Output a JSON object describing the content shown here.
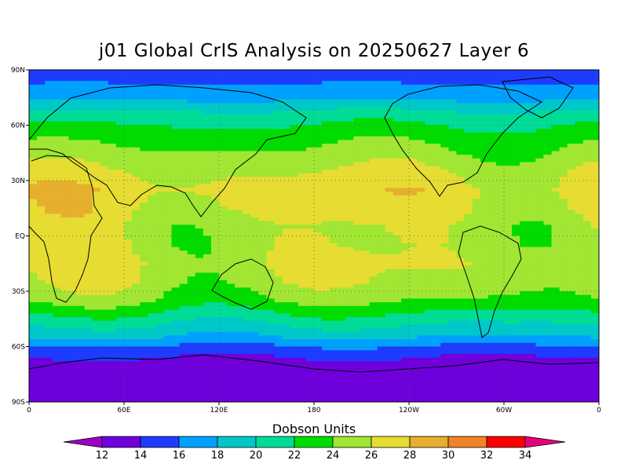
{
  "chart_data": {
    "type": "heatmap",
    "title": "j01 Global CrIS Analysis on 20250627 Layer 6",
    "colorbar_label": "Dobson Units",
    "map_projection": "cylindrical equidistant, 0 to 360 longitude",
    "x_ticks": [
      "0",
      "60E",
      "120E",
      "180",
      "120W",
      "60W",
      "0"
    ],
    "y_ticks": [
      "90N",
      "60N",
      "30N",
      "EQ",
      "30S",
      "60S",
      "90S"
    ],
    "xlim": [
      0,
      360
    ],
    "ylim": [
      -90,
      90
    ],
    "grid": true,
    "legend_position": "bottom",
    "colorbar_ticks": [
      "12",
      "14",
      "16",
      "18",
      "20",
      "22",
      "24",
      "26",
      "28",
      "30",
      "32",
      "34"
    ],
    "colorbar_colors": [
      "#a000c8",
      "#6e00dc",
      "#1e3cff",
      "#00a0ff",
      "#00c8c8",
      "#00dc96",
      "#00dc00",
      "#a0e632",
      "#e6dc32",
      "#e6af2d",
      "#f08228",
      "#fa0000",
      "#e6007d"
    ],
    "zonal_profile": [
      {
        "lat": 85,
        "value": 15.5
      },
      {
        "lat": 75,
        "value": 17.5
      },
      {
        "lat": 65,
        "value": 21
      },
      {
        "lat": 55,
        "value": 23
      },
      {
        "lat": 45,
        "value": 24.5
      },
      {
        "lat": 35,
        "value": 26
      },
      {
        "lat": 25,
        "value": 27
      },
      {
        "lat": 15,
        "value": 26.5
      },
      {
        "lat": 5,
        "value": 25.5
      },
      {
        "lat": -5,
        "value": 25.5
      },
      {
        "lat": -15,
        "value": 26
      },
      {
        "lat": -25,
        "value": 25.5
      },
      {
        "lat": -35,
        "value": 24
      },
      {
        "lat": -45,
        "value": 21
      },
      {
        "lat": -55,
        "value": 18
      },
      {
        "lat": -62,
        "value": 15
      },
      {
        "lat": -70,
        "value": 13
      },
      {
        "lat": -82,
        "value": 12.5
      }
    ]
  }
}
